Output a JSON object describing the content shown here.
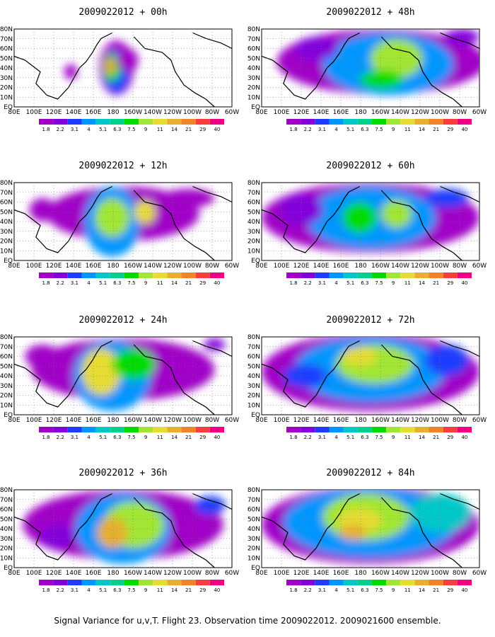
{
  "caption": "Signal Variance for u,v,T. Flight 23. Observation time 2009022012. 2009021600 ensemble.",
  "chart_data": {
    "type": "heatmap",
    "panels": [
      {
        "title": "2009022012 + 00h",
        "lead_hours": 0
      },
      {
        "title": "2009022012 + 48h",
        "lead_hours": 48
      },
      {
        "title": "2009022012 + 12h",
        "lead_hours": 12
      },
      {
        "title": "2009022012 + 60h",
        "lead_hours": 60
      },
      {
        "title": "2009022012 + 24h",
        "lead_hours": 24
      },
      {
        "title": "2009022012 + 72h",
        "lead_hours": 72
      },
      {
        "title": "2009022012 + 36h",
        "lead_hours": 36
      },
      {
        "title": "2009022012 + 84h",
        "lead_hours": 84
      }
    ],
    "x_ticks": [
      "80E",
      "100E",
      "120E",
      "140E",
      "160E",
      "180",
      "160W",
      "140W",
      "120W",
      "100W",
      "80W",
      "60W"
    ],
    "y_ticks": [
      "EQ",
      "10N",
      "20N",
      "30N",
      "40N",
      "50N",
      "60N",
      "70N",
      "80N"
    ],
    "colorbar": {
      "labels": [
        "1.8",
        "2.2",
        "3.1",
        "4",
        "5.1",
        "6.3",
        "7.5",
        "9",
        "11",
        "14",
        "21",
        "29",
        "40"
      ],
      "colors": [
        "#a000c8",
        "#8200dc",
        "#1e3cff",
        "#0096ff",
        "#00c8c8",
        "#00d28c",
        "#00dc00",
        "#a0e632",
        "#e6dc32",
        "#e6af2d",
        "#f08228",
        "#fa3c3c",
        "#f00082"
      ]
    }
  }
}
